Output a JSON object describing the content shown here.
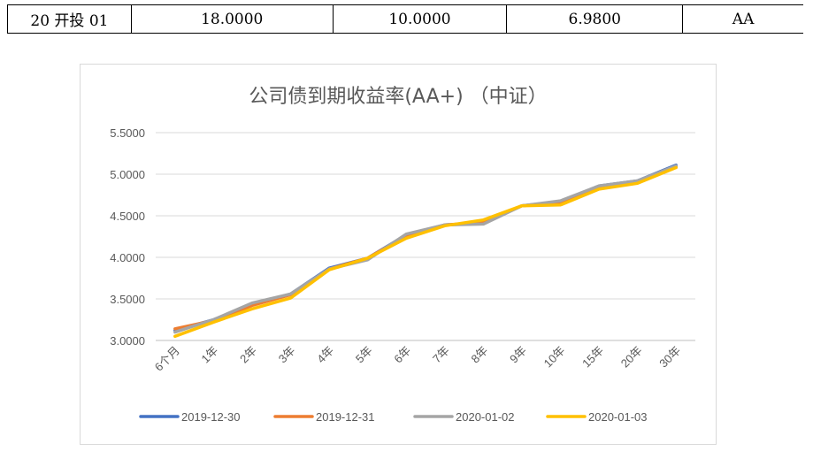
{
  "table": {
    "cells": [
      "20 开投 01",
      "18.0000",
      "10.0000",
      "6.9800",
      "AA"
    ]
  },
  "chart_data": {
    "type": "line",
    "title": "公司债到期收益率(AA+) （中证）",
    "xlabel": "",
    "ylabel": "",
    "categories": [
      "6个月",
      "1年",
      "2年",
      "3年",
      "4年",
      "5年",
      "6年",
      "7年",
      "8年",
      "9年",
      "10年",
      "15年",
      "20年",
      "30年"
    ],
    "ylim": [
      3.0,
      5.5
    ],
    "yticks": [
      "3.0000",
      "3.5000",
      "4.0000",
      "4.5000",
      "5.0000",
      "5.5000"
    ],
    "grid": true,
    "legend_position": "bottom",
    "series": [
      {
        "name": "2019-12-30",
        "color": "#4472c4",
        "values": [
          3.12,
          3.25,
          3.43,
          3.56,
          3.87,
          3.99,
          4.27,
          4.39,
          4.41,
          4.62,
          4.67,
          4.86,
          4.92,
          5.11
        ]
      },
      {
        "name": "2019-12-31",
        "color": "#ed7d31",
        "values": [
          3.14,
          3.24,
          3.42,
          3.55,
          3.86,
          3.99,
          4.26,
          4.39,
          4.42,
          4.62,
          4.66,
          4.84,
          4.91,
          5.09
        ]
      },
      {
        "name": "2020-01-02",
        "color": "#a5a5a5",
        "values": [
          3.1,
          3.25,
          3.45,
          3.56,
          3.86,
          3.97,
          4.28,
          4.39,
          4.4,
          4.62,
          4.68,
          4.86,
          4.92,
          5.1
        ]
      },
      {
        "name": "2020-01-03",
        "color": "#ffc000",
        "values": [
          3.05,
          3.22,
          3.38,
          3.51,
          3.85,
          3.99,
          4.23,
          4.38,
          4.45,
          4.62,
          4.63,
          4.82,
          4.89,
          5.08
        ]
      }
    ]
  }
}
